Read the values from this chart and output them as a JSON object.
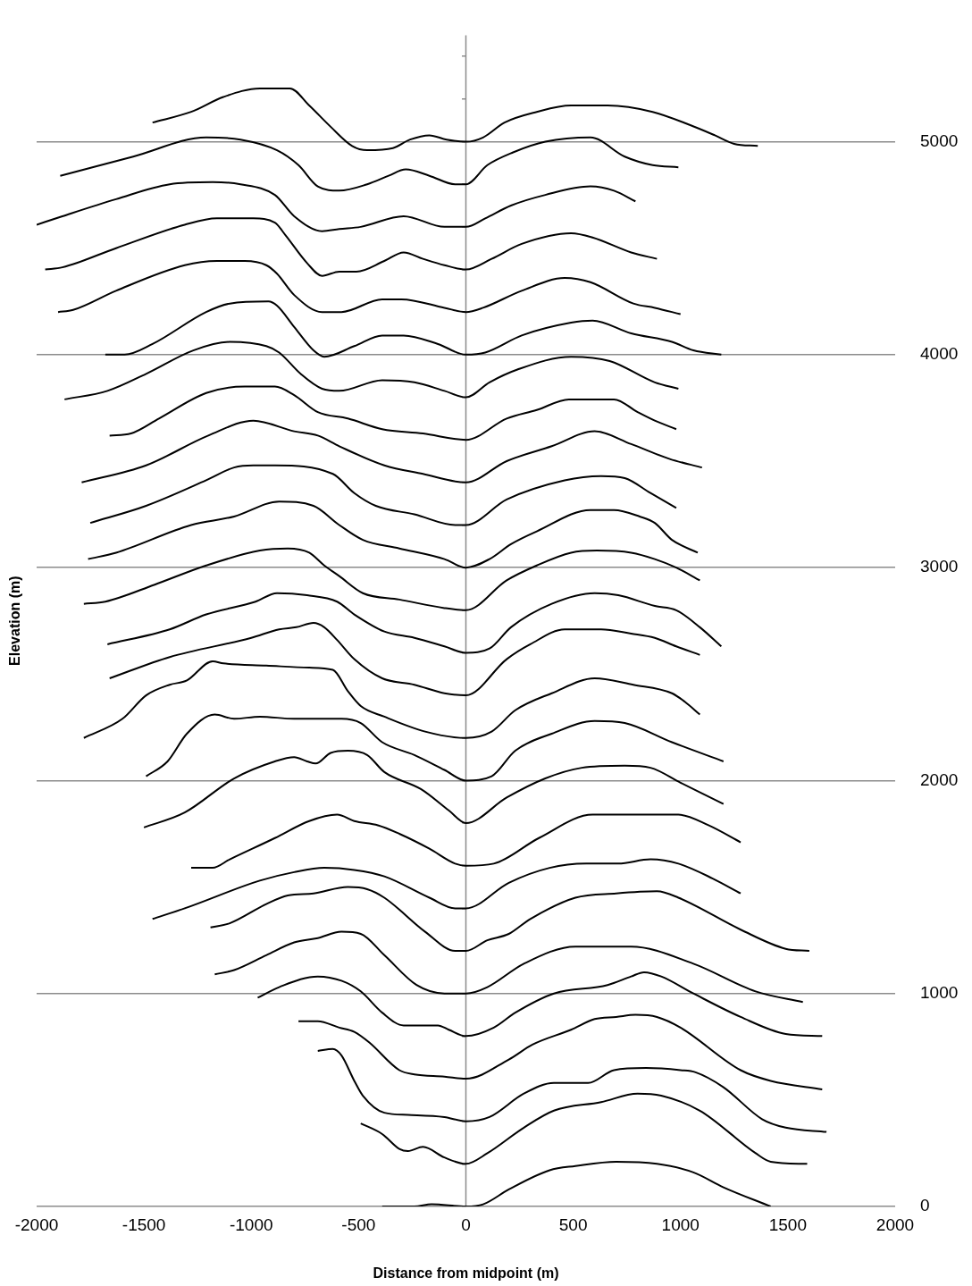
{
  "chart_data": {
    "type": "line",
    "xlabel": "Distance from midpoint (m)",
    "ylabel": "Elevation (m)",
    "xlim": [
      -2000,
      2000
    ],
    "xticks": [
      -2000,
      -1500,
      -1000,
      -500,
      0,
      500,
      1000,
      1500,
      2000
    ],
    "ylim": [
      0,
      5500
    ],
    "yticks": [
      0,
      {
        "value": 200,
        "label": null
      },
      {
        "value": 400,
        "label": null
      },
      {
        "value": 600,
        "label": null
      },
      {
        "value": 800,
        "label": null
      },
      1000,
      {
        "value": 1200,
        "label": null
      },
      {
        "value": 1400,
        "label": null
      },
      {
        "value": 1600,
        "label": null
      },
      {
        "value": 1800,
        "label": null
      },
      2000,
      {
        "value": 2200,
        "label": null
      },
      {
        "value": 2400,
        "label": null
      },
      {
        "value": 2600,
        "label": null
      },
      {
        "value": 2800,
        "label": null
      },
      3000,
      {
        "value": 3200,
        "label": null
      },
      {
        "value": 3400,
        "label": null
      },
      {
        "value": 3600,
        "label": null
      },
      {
        "value": 3800,
        "label": null
      },
      4000,
      {
        "value": 4200,
        "label": null
      },
      {
        "value": 4400,
        "label": null
      },
      {
        "value": 4600,
        "label": null
      },
      {
        "value": 4800,
        "label": null
      },
      5000,
      {
        "value": 5200,
        "label": null
      },
      {
        "value": 5400,
        "label": null
      }
    ],
    "grid": "y",
    "legend": false,
    "marker": "none",
    "ref_lines": [
      {
        "axis": "x",
        "value": 0,
        "color": "#8c8c8c"
      }
    ],
    "series": [
      {
        "color": "#000000",
        "x": [
          -390,
          -240,
          -160,
          0,
          80,
          200,
          390,
          510,
          700,
          890,
          1060,
          1200,
          1420
        ],
        "values": [
          0,
          0,
          10,
          0,
          10,
          80,
          170,
          190,
          210,
          200,
          160,
          90,
          0
        ]
      },
      {
        "color": "#000000",
        "x": [
          -490,
          -390,
          -310,
          -270,
          -200,
          -100,
          0,
          100,
          270,
          410,
          630,
          800,
          910,
          1090,
          1350,
          1420,
          1590
        ],
        "values": [
          390,
          340,
          270,
          260,
          280,
          230,
          200,
          250,
          370,
          450,
          490,
          530,
          520,
          450,
          250,
          210,
          200
        ]
      },
      {
        "color": "#000000",
        "x": [
          -690,
          -620,
          -580,
          -520,
          -480,
          -380,
          -270,
          -100,
          0,
          110,
          270,
          410,
          570,
          690,
          840,
          1000,
          1070,
          1200,
          1380,
          1490,
          1680
        ],
        "values": [
          730,
          740,
          710,
          590,
          520,
          440,
          430,
          420,
          400,
          420,
          530,
          580,
          580,
          640,
          650,
          640,
          630,
          560,
          410,
          370,
          350
        ]
      },
      {
        "color": "#000000",
        "x": [
          -780,
          -690,
          -590,
          -520,
          -450,
          -310,
          -240,
          -100,
          0,
          200,
          310,
          490,
          600,
          700,
          790,
          890,
          1000,
          1280,
          1420,
          1660
        ],
        "values": [
          870,
          870,
          840,
          820,
          770,
          640,
          620,
          610,
          600,
          690,
          760,
          830,
          880,
          890,
          900,
          890,
          840,
          640,
          590,
          550
        ]
      },
      {
        "color": "#000000",
        "x": [
          -970,
          -870,
          -690,
          -580,
          -490,
          -390,
          -290,
          -130,
          -80,
          0,
          130,
          230,
          410,
          660,
          770,
          830,
          910,
          1060,
          1280,
          1490,
          1660
        ],
        "values": [
          980,
          1030,
          1080,
          1060,
          1010,
          910,
          850,
          850,
          830,
          800,
          840,
          910,
          1000,
          1040,
          1080,
          1100,
          1080,
          1000,
          890,
          810,
          800
        ]
      },
      {
        "color": "#000000",
        "x": [
          -1170,
          -1080,
          -930,
          -800,
          -690,
          -580,
          -490,
          -380,
          -230,
          -100,
          0,
          100,
          270,
          510,
          770,
          1060,
          1350,
          1570
        ],
        "values": [
          1090,
          1110,
          1180,
          1240,
          1260,
          1290,
          1280,
          1180,
          1040,
          1000,
          1000,
          1030,
          1140,
          1220,
          1220,
          1140,
          1010,
          960
        ]
      },
      {
        "color": "#000000",
        "x": [
          -1190,
          -1100,
          -930,
          -830,
          -710,
          -550,
          -460,
          -380,
          -190,
          -50,
          0,
          100,
          200,
          300,
          510,
          700,
          890,
          990,
          1280,
          1490,
          1600
        ],
        "values": [
          1310,
          1330,
          1420,
          1460,
          1470,
          1500,
          1490,
          1450,
          1290,
          1200,
          1200,
          1250,
          1280,
          1350,
          1450,
          1470,
          1480,
          1450,
          1300,
          1210,
          1200
        ]
      },
      {
        "color": "#000000",
        "x": [
          -1460,
          -1310,
          -960,
          -800,
          -660,
          -520,
          -380,
          -170,
          -50,
          0,
          200,
          390,
          560,
          710,
          860,
          990,
          1150,
          1280
        ],
        "values": [
          1350,
          1400,
          1530,
          1570,
          1590,
          1580,
          1550,
          1450,
          1400,
          1400,
          1520,
          1590,
          1610,
          1610,
          1630,
          1610,
          1540,
          1470
        ]
      },
      {
        "color": "#000000",
        "x": [
          -1280,
          -1180,
          -1100,
          -890,
          -730,
          -600,
          -520,
          -410,
          -310,
          -170,
          -50,
          0,
          130,
          340,
          590,
          840,
          990,
          1130,
          1280
        ],
        "values": [
          1590,
          1590,
          1630,
          1730,
          1810,
          1840,
          1810,
          1790,
          1750,
          1680,
          1610,
          1600,
          1610,
          1730,
          1840,
          1840,
          1840,
          1790,
          1710
        ]
      },
      {
        "color": "#000000",
        "x": [
          -1500,
          -1310,
          -1080,
          -890,
          -800,
          -740,
          -700,
          -630,
          -550,
          -460,
          -380,
          -210,
          -80,
          0,
          190,
          370,
          540,
          740,
          860,
          1000,
          1200
        ],
        "values": [
          1780,
          1850,
          2010,
          2090,
          2110,
          2090,
          2080,
          2130,
          2140,
          2120,
          2040,
          1960,
          1860,
          1800,
          1920,
          2010,
          2060,
          2070,
          2060,
          1990,
          1890
        ]
      },
      {
        "color": "#000000",
        "x": [
          -1490,
          -1390,
          -1300,
          -1170,
          -1080,
          -960,
          -800,
          -580,
          -490,
          -390,
          -240,
          -100,
          0,
          120,
          230,
          400,
          600,
          740,
          960,
          1200
        ],
        "values": [
          2020,
          2090,
          2220,
          2310,
          2290,
          2300,
          2290,
          2290,
          2270,
          2180,
          2120,
          2050,
          2000,
          2020,
          2140,
          2220,
          2280,
          2270,
          2180,
          2090
        ]
      },
      {
        "color": "#000000",
        "x": [
          -1780,
          -1600,
          -1490,
          -1380,
          -1300,
          -1180,
          -1130,
          -930,
          -730,
          -620,
          -550,
          -490,
          -380,
          -190,
          0,
          120,
          230,
          400,
          600,
          780,
          960,
          1020,
          1090
        ],
        "values": [
          2200,
          2290,
          2400,
          2450,
          2470,
          2560,
          2550,
          2540,
          2530,
          2520,
          2420,
          2350,
          2300,
          2230,
          2200,
          2230,
          2330,
          2410,
          2480,
          2450,
          2410,
          2370,
          2310
        ]
      },
      {
        "color": "#000000",
        "x": [
          -1660,
          -1380,
          -1000,
          -870,
          -790,
          -710,
          -660,
          -600,
          -520,
          -390,
          -240,
          -100,
          0,
          190,
          300,
          460,
          630,
          770,
          880,
          980,
          1090
        ],
        "values": [
          2480,
          2580,
          2670,
          2710,
          2720,
          2740,
          2720,
          2660,
          2570,
          2480,
          2450,
          2410,
          2400,
          2570,
          2640,
          2710,
          2710,
          2690,
          2670,
          2630,
          2590
        ]
      },
      {
        "color": "#000000",
        "x": [
          -1670,
          -1380,
          -1210,
          -980,
          -880,
          -740,
          -600,
          -520,
          -380,
          -240,
          -100,
          0,
          110,
          210,
          400,
          600,
          710,
          880,
          980,
          1090,
          1190
        ],
        "values": [
          2640,
          2710,
          2780,
          2840,
          2880,
          2870,
          2840,
          2780,
          2700,
          2670,
          2630,
          2600,
          2620,
          2720,
          2830,
          2880,
          2870,
          2820,
          2800,
          2720,
          2630
        ]
      },
      {
        "color": "#000000",
        "x": [
          -1780,
          -1680,
          -1450,
          -1210,
          -960,
          -830,
          -730,
          -660,
          -590,
          -480,
          -310,
          -100,
          0,
          190,
          330,
          490,
          610,
          770,
          880,
          980,
          1090
        ],
        "values": [
          2830,
          2840,
          2920,
          3010,
          3080,
          3090,
          3070,
          3010,
          2960,
          2880,
          2850,
          2810,
          2800,
          2940,
          3010,
          3070,
          3080,
          3070,
          3040,
          3000,
          2940
        ]
      },
      {
        "color": "#000000",
        "x": [
          -1760,
          -1630,
          -1280,
          -1080,
          -870,
          -710,
          -590,
          -480,
          -310,
          -100,
          0,
          110,
          210,
          330,
          580,
          690,
          810,
          880,
          960,
          1080
        ],
        "values": [
          3040,
          3070,
          3200,
          3240,
          3310,
          3290,
          3200,
          3130,
          3090,
          3040,
          3000,
          3040,
          3110,
          3170,
          3270,
          3270,
          3240,
          3210,
          3130,
          3070
        ]
      },
      {
        "color": "#000000",
        "x": [
          -1750,
          -1490,
          -1210,
          -1080,
          -990,
          -890,
          -620,
          -520,
          -420,
          -240,
          -50,
          0,
          190,
          460,
          630,
          740,
          860,
          980
        ],
        "values": [
          3210,
          3290,
          3410,
          3470,
          3480,
          3480,
          3440,
          3350,
          3290,
          3250,
          3200,
          3200,
          3320,
          3410,
          3430,
          3420,
          3350,
          3280
        ]
      },
      {
        "color": "#000000",
        "x": [
          -1790,
          -1490,
          -1200,
          -990,
          -800,
          -690,
          -590,
          -380,
          -200,
          0,
          190,
          400,
          600,
          770,
          950,
          1100
        ],
        "values": [
          3400,
          3480,
          3620,
          3690,
          3640,
          3620,
          3570,
          3480,
          3440,
          3400,
          3500,
          3570,
          3640,
          3580,
          3510,
          3470
        ]
      },
      {
        "color": "#000000",
        "x": [
          -1660,
          -1560,
          -1430,
          -1210,
          -1030,
          -890,
          -800,
          -690,
          -550,
          -390,
          -200,
          0,
          190,
          330,
          480,
          630,
          690,
          800,
          880,
          980
        ],
        "values": [
          3620,
          3630,
          3700,
          3820,
          3850,
          3850,
          3810,
          3730,
          3700,
          3650,
          3630,
          3600,
          3700,
          3740,
          3790,
          3790,
          3790,
          3730,
          3690,
          3650
        ]
      },
      {
        "color": "#000000",
        "x": [
          -1870,
          -1670,
          -1490,
          -1270,
          -1100,
          -930,
          -870,
          -770,
          -670,
          -590,
          -390,
          -240,
          -100,
          0,
          110,
          240,
          490,
          670,
          880,
          990
        ],
        "values": [
          3790,
          3830,
          3910,
          4020,
          4060,
          4040,
          4010,
          3910,
          3840,
          3830,
          3880,
          3870,
          3830,
          3800,
          3870,
          3930,
          3990,
          3970,
          3870,
          3840
        ]
      },
      {
        "color": "#000000",
        "x": [
          -1680,
          -1590,
          -1460,
          -1210,
          -1100,
          -920,
          -880,
          -800,
          -710,
          -660,
          -520,
          -390,
          -290,
          -130,
          0,
          90,
          260,
          490,
          590,
          770,
          960,
          1060,
          1190
        ],
        "values": [
          4000,
          4000,
          4050,
          4200,
          4240,
          4250,
          4230,
          4130,
          4020,
          3990,
          4040,
          4090,
          4090,
          4050,
          4000,
          4010,
          4090,
          4150,
          4160,
          4100,
          4060,
          4020,
          4000
        ]
      },
      {
        "color": "#000000",
        "x": [
          -1900,
          -1830,
          -1630,
          -1310,
          -1160,
          -1030,
          -930,
          -880,
          -800,
          -670,
          -580,
          -390,
          -300,
          -100,
          0,
          80,
          260,
          460,
          580,
          780,
          880,
          1000
        ],
        "values": [
          4200,
          4210,
          4300,
          4420,
          4440,
          4440,
          4420,
          4380,
          4280,
          4200,
          4200,
          4260,
          4260,
          4220,
          4200,
          4220,
          4300,
          4360,
          4340,
          4240,
          4220,
          4190
        ]
      },
      {
        "color": "#000000",
        "x": [
          -1960,
          -1880,
          -1630,
          -1310,
          -1160,
          -990,
          -890,
          -840,
          -740,
          -670,
          -590,
          -510,
          -380,
          -290,
          -200,
          -100,
          0,
          120,
          260,
          490,
          590,
          770,
          890
        ],
        "values": [
          4400,
          4410,
          4500,
          4610,
          4640,
          4640,
          4620,
          4560,
          4430,
          4370,
          4390,
          4390,
          4440,
          4480,
          4450,
          4420,
          4400,
          4450,
          4520,
          4570,
          4550,
          4480,
          4450
        ]
      },
      {
        "color": "#000000",
        "x": [
          -2000,
          -1880,
          -1630,
          -1380,
          -1180,
          -1050,
          -890,
          -800,
          -670,
          -590,
          -490,
          -290,
          -100,
          0,
          90,
          210,
          370,
          580,
          690,
          790
        ],
        "values": [
          4610,
          4650,
          4730,
          4800,
          4810,
          4800,
          4750,
          4650,
          4580,
          4590,
          4600,
          4650,
          4600,
          4600,
          4640,
          4700,
          4750,
          4790,
          4770,
          4720
        ]
      },
      {
        "color": "#000000",
        "x": [
          -1890,
          -1550,
          -1210,
          -1050,
          -880,
          -780,
          -690,
          -590,
          -460,
          -360,
          -280,
          -170,
          -50,
          0,
          100,
          220,
          370,
          580,
          740,
          870,
          990
        ],
        "values": [
          4840,
          4930,
          5020,
          5010,
          4960,
          4890,
          4790,
          4770,
          4800,
          4840,
          4870,
          4840,
          4800,
          4800,
          4890,
          4950,
          5000,
          5020,
          4930,
          4890,
          4880
        ]
      },
      {
        "color": "#000000",
        "x": [
          -1460,
          -1280,
          -1130,
          -960,
          -820,
          -730,
          -630,
          -530,
          -460,
          -340,
          -260,
          -170,
          -90,
          0,
          80,
          180,
          330,
          490,
          660,
          870,
          1040,
          1160,
          1250,
          1360
        ],
        "values": [
          5090,
          5140,
          5210,
          5250,
          5250,
          5170,
          5070,
          4980,
          4960,
          4970,
          5010,
          5030,
          5010,
          5000,
          5020,
          5090,
          5140,
          5170,
          5170,
          5140,
          5080,
          5030,
          4990,
          4980
        ]
      }
    ]
  }
}
